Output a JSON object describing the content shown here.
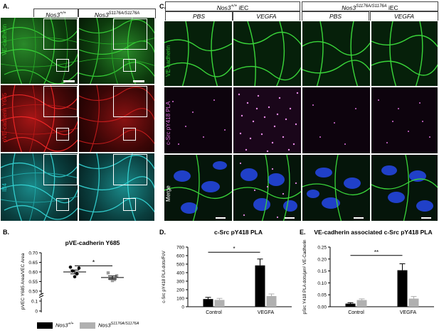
{
  "panels": {
    "A": {
      "letter": "A.",
      "col_headers": [
        "Nos3",
        "Nos3"
      ],
      "col_header_sups": [
        "+/+",
        "S1176A/S1176A"
      ],
      "row_labels": [
        "VE-cadherin",
        "pVE-cadherin Y685",
        "IB4"
      ],
      "row_colors": [
        "#2fd12f",
        "#e01a1a",
        "#23c7c7"
      ]
    },
    "C": {
      "letter": "C.",
      "group_headers": [
        "Nos3",
        "Nos3"
      ],
      "group_header_sups": [
        "+/+",
        "S1176A/S1176A"
      ],
      "group_header_suffix": "iEC",
      "col_headers": [
        "PBS",
        "VEGFA",
        "PBS",
        "VEGFA"
      ],
      "row_labels": [
        "VE-cadherin",
        "c-Src pY418 PLA",
        "Merge"
      ],
      "row_label_colors": [
        "#2fd12f",
        "#d86fd8",
        "#ffffff"
      ]
    },
    "B": {
      "letter": "B.",
      "significance": "*"
    },
    "D": {
      "letter": "D.",
      "significance": "*"
    },
    "E": {
      "letter": "E.",
      "significance": "**"
    }
  },
  "legend": {
    "items": [
      {
        "label": "Nos3",
        "sup": "+/+",
        "color": "#000000"
      },
      {
        "label": "Nos3",
        "sup": "S1176A/S1176A",
        "color": "#b0b0b0"
      }
    ]
  },
  "chart_data": [
    {
      "id": "B",
      "type": "scatter",
      "title": "pVE-cadherin Y685",
      "ylabel": "pVEC Y685 Area/VEC Area",
      "ylim_top": [
        0.5,
        0.7
      ],
      "yticks": [
        "0",
        "0.1",
        "0.50",
        "0.55",
        "0.60",
        "0.65",
        "0.70"
      ],
      "axis_break": true,
      "groups": [
        {
          "name": "Nos3+/+",
          "color": "#000000",
          "marker": "circle",
          "points": [
            0.625,
            0.62,
            0.605,
            0.59,
            0.575
          ],
          "mean": 0.6,
          "sem": 0.01
        },
        {
          "name": "Nos3S1176A/S1176A",
          "color": "#9a9a9a",
          "marker": "square",
          "points": [
            0.595,
            0.58,
            0.565,
            0.56,
            0.555
          ],
          "mean": 0.571,
          "sem": 0.008
        }
      ]
    },
    {
      "id": "D",
      "type": "bar",
      "title": "c-Src pY418 PLA",
      "ylabel": "c-Src pY418 PLA dots/FoV",
      "categories": [
        "Control",
        "VEGFA"
      ],
      "ylim": [
        0,
        700
      ],
      "yticks": [
        0,
        100,
        200,
        300,
        400,
        500,
        600,
        700
      ],
      "series": [
        {
          "name": "Nos3+/+",
          "color": "#000000",
          "values": [
            90,
            485
          ],
          "errors": [
            20,
            75
          ]
        },
        {
          "name": "Nos3S1176A/S1176A",
          "color": "#b0b0b0",
          "values": [
            80,
            125
          ],
          "errors": [
            18,
            25
          ]
        }
      ]
    },
    {
      "id": "E",
      "type": "bar",
      "title": "VE-cadherin associated c-Src pY418 PLA",
      "ylabel": "pSrc Y418 PLA dots/μm² VE-Cadherin",
      "categories": [
        "Control",
        "VEGFA"
      ],
      "ylim": [
        0,
        0.25
      ],
      "yticks": [
        "0.00",
        "0.05",
        "0.10",
        "0.15",
        "0.20",
        "0.25"
      ],
      "series": [
        {
          "name": "Nos3+/+",
          "color": "#000000",
          "values": [
            0.013,
            0.153
          ],
          "errors": [
            0.004,
            0.027
          ]
        },
        {
          "name": "Nos3S1176A/S1176A",
          "color": "#b0b0b0",
          "values": [
            0.028,
            0.034
          ],
          "errors": [
            0.005,
            0.009
          ]
        }
      ]
    }
  ]
}
